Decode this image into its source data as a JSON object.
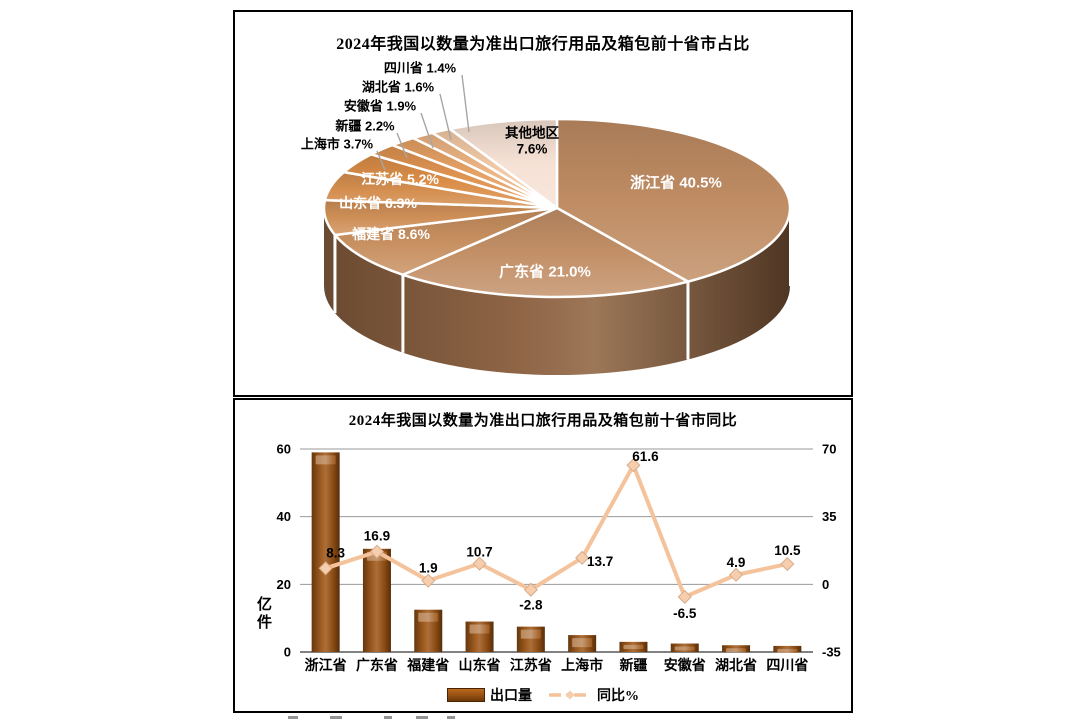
{
  "chart_data": [
    {
      "type": "pie",
      "style": "3d",
      "title": "2024年我国以数量为准出口旅行用品及箱包前十省市占比",
      "unit": "%",
      "labels": [
        "浙江省",
        "广东省",
        "福建省",
        "山东省",
        "江苏省",
        "上海市",
        "新疆",
        "安徽省",
        "湖北省",
        "四川省",
        "其他地区"
      ],
      "values": [
        40.5,
        21.0,
        8.6,
        6.3,
        5.2,
        3.7,
        2.2,
        1.9,
        1.6,
        1.4,
        7.6
      ],
      "colors": [
        "#bf8c63",
        "#c28f66",
        "#c78f5f",
        "#ce8f57",
        "#d48e4f",
        "#da8d47",
        "#df9350",
        "#e5a164",
        "#ecb483",
        "#f2c9a6",
        "#f6e1d5"
      ],
      "rim_colors": [
        "#6a4a31",
        "#8f6546",
        "#9c7758",
        "#4f3623"
      ],
      "label_text_colors": [
        "#ffffff",
        "#ffffff",
        "#ffffff",
        "#ffffff",
        "#ffffff",
        "#000000",
        "#000000",
        "#000000",
        "#000000",
        "#000000",
        "#000000"
      ],
      "leader_line_color": "#a6a6a6"
    },
    {
      "type": "bar",
      "subtype": "bar+line combo",
      "title": "2024年我国以数量为准出口旅行用品及箱包前十省市同比",
      "categories": [
        "浙江省",
        "广东省",
        "福建省",
        "山东省",
        "江苏省",
        "上海市",
        "新疆",
        "安徽省",
        "湖北省",
        "四川省"
      ],
      "series": [
        {
          "name": "出口量",
          "render": "bar",
          "axis": "left",
          "values_estimated": true,
          "values": [
            59,
            30.5,
            12.5,
            9,
            7.5,
            5,
            3,
            2.5,
            2,
            1.8
          ],
          "color": "#9c5414"
        },
        {
          "name": "同比%",
          "render": "line",
          "axis": "right",
          "values_labeled": true,
          "values": [
            8.3,
            16.9,
            1.9,
            10.7,
            -2.8,
            13.7,
            61.6,
            -6.5,
            4.9,
            10.5
          ],
          "color": "#f4c39c"
        }
      ],
      "left_axis": {
        "title": "亿件",
        "ticks": [
          0,
          20,
          40,
          60
        ],
        "range": [
          0,
          60
        ]
      },
      "right_axis": {
        "ticks": [
          -35,
          0,
          35,
          70
        ],
        "range": [
          -35,
          70
        ]
      },
      "legend": [
        {
          "label": "出口量",
          "marker": "bar"
        },
        {
          "label": "同比%",
          "marker": "line"
        }
      ],
      "grid": true,
      "gridline_color": "#9a9a9a",
      "axis_line_color": "#595959"
    }
  ]
}
